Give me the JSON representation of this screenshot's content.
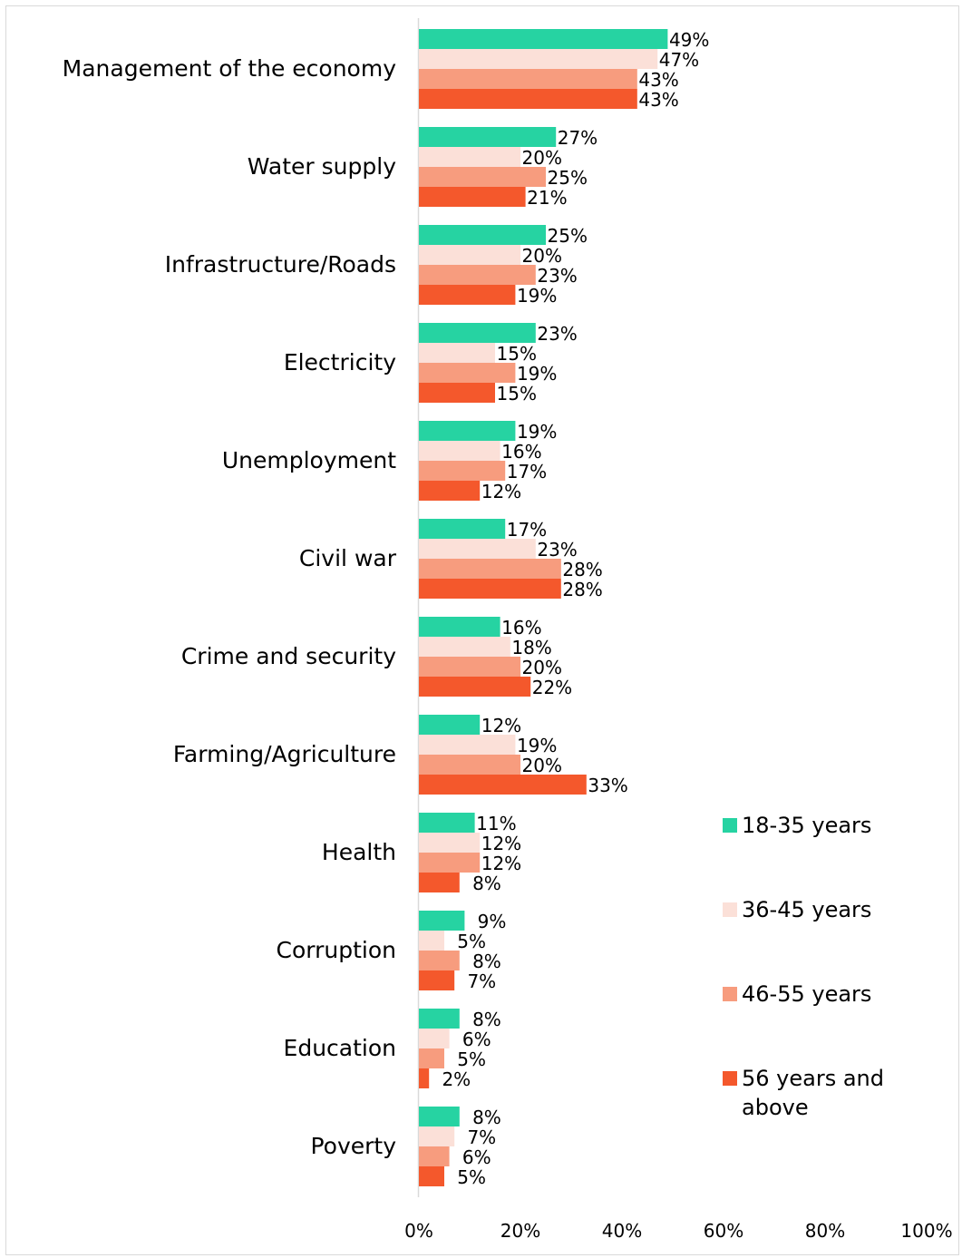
{
  "chart_data": {
    "type": "bar",
    "orientation": "horizontal",
    "categories": [
      "Management of the economy",
      "Water supply",
      "Infrastructure/Roads",
      "Electricity",
      "Unemployment",
      "Civil war",
      "Crime and security",
      "Farming/Agriculture",
      "Health",
      "Corruption",
      "Education",
      "Poverty"
    ],
    "series": [
      {
        "name": "18-35 years",
        "color": "#26d3a2",
        "values": [
          49,
          27,
          25,
          23,
          19,
          17,
          16,
          12,
          11,
          9,
          8,
          8
        ]
      },
      {
        "name": "36-45 years",
        "color": "#fbe0d8",
        "values": [
          47,
          20,
          20,
          15,
          16,
          23,
          18,
          19,
          12,
          5,
          6,
          7
        ]
      },
      {
        "name": "46-55 years",
        "color": "#f79c7e",
        "values": [
          43,
          25,
          23,
          19,
          17,
          28,
          20,
          20,
          12,
          8,
          5,
          6
        ]
      },
      {
        "name": "56 years and above",
        "color": "#f4582c",
        "values": [
          43,
          21,
          19,
          15,
          12,
          28,
          22,
          33,
          8,
          7,
          2,
          5
        ]
      }
    ],
    "value_suffix": "%",
    "xlim": [
      0,
      100
    ],
    "x_ticks": [
      0,
      20,
      40,
      60,
      80,
      100
    ],
    "x_tick_labels": [
      "0%",
      "20%",
      "40%",
      "60%",
      "80%",
      "100%"
    ],
    "legend_position": "right",
    "grid": false
  }
}
